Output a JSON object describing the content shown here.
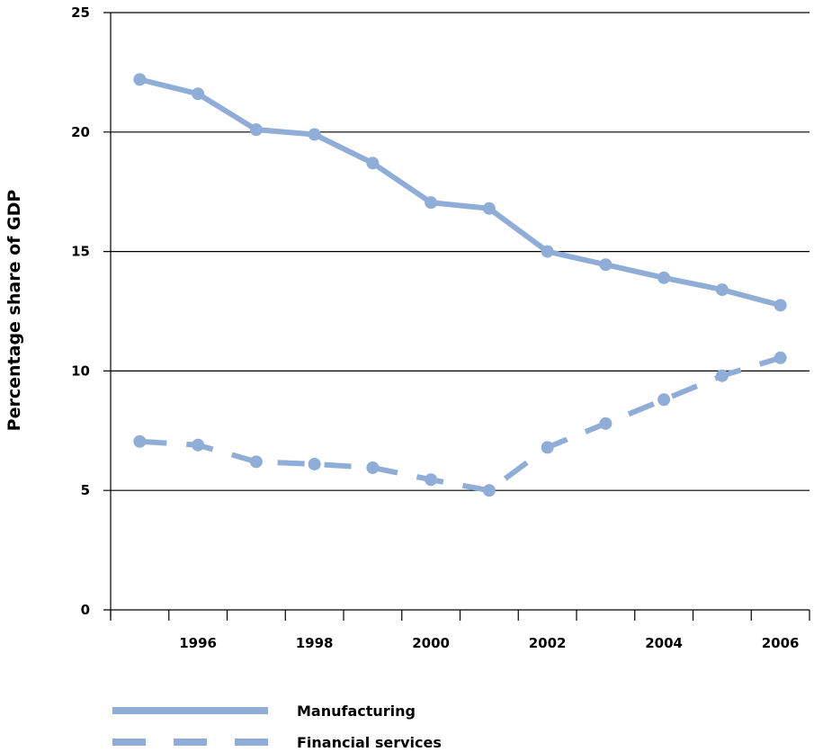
{
  "chart_data": {
    "type": "line",
    "title": "",
    "xlabel": "",
    "ylabel": "Percentage share of GDP",
    "ylim": [
      0,
      25
    ],
    "yticks": [
      0,
      5,
      10,
      15,
      20,
      25
    ],
    "xlim": [
      1994.5,
      2006.5
    ],
    "xtick_labels": [
      "1996",
      "1998",
      "2000",
      "2002",
      "2004",
      "2006"
    ],
    "x": [
      1995,
      1996,
      1997,
      1998,
      1999,
      2000,
      2001,
      2002,
      2003,
      2004,
      2005,
      2006
    ],
    "grid": "horizontal",
    "legend_position": "bottom-left",
    "color": "#8fadd6",
    "series": [
      {
        "name": "Manufacturing",
        "style": "solid",
        "values": [
          22.2,
          21.6,
          20.1,
          19.9,
          18.7,
          17.05,
          16.8,
          15.0,
          14.45,
          13.9,
          13.4,
          12.75
        ]
      },
      {
        "name": "Financial services",
        "style": "dashed",
        "values": [
          7.05,
          6.9,
          6.2,
          6.1,
          5.95,
          5.45,
          5.0,
          6.8,
          7.8,
          8.8,
          9.8,
          10.55
        ]
      }
    ]
  }
}
